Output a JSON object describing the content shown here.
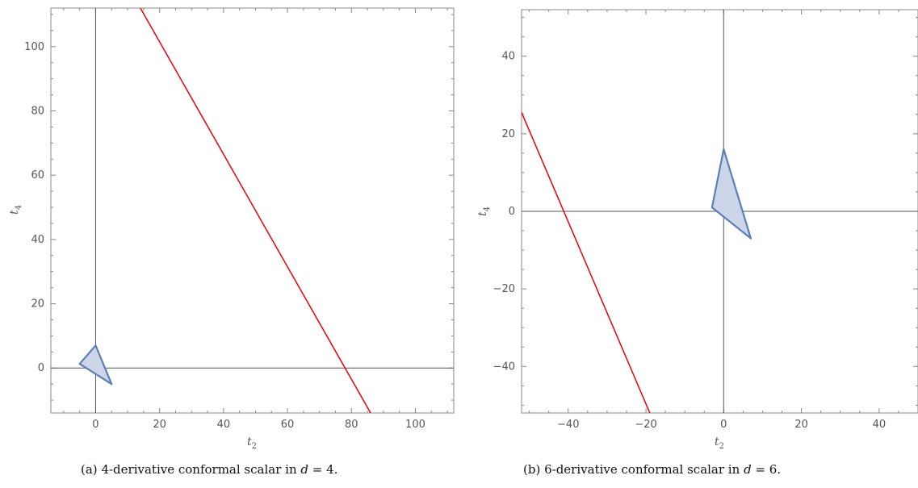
{
  "chart_data": [
    {
      "type": "line",
      "caption": {
        "label": "(a)",
        "text": "4-derivative conformal scalar in",
        "math_var": "d",
        "math_rel": " = ",
        "math_val": "4."
      },
      "xlabel": {
        "base": "t",
        "sub": "2"
      },
      "ylabel": {
        "base": "t",
        "sub": "4"
      },
      "xlim": [
        -14,
        112
      ],
      "ylim": [
        -14,
        112
      ],
      "xticks": [
        0,
        20,
        40,
        60,
        80,
        100
      ],
      "yticks": [
        0,
        20,
        40,
        60,
        80,
        100
      ],
      "xtick_labels": [
        "0",
        "20",
        "40",
        "60",
        "80",
        "100"
      ],
      "ytick_labels": [
        "0",
        "20",
        "40",
        "60",
        "80",
        "100"
      ],
      "red_line": [
        [
          14,
          112
        ],
        [
          86,
          -14
        ]
      ],
      "region": [
        [
          0,
          7
        ],
        [
          5,
          -5
        ],
        [
          -5,
          1.3
        ]
      ],
      "colors": {
        "line": "#e8000b",
        "region_fill": "#cdd6e8",
        "region_stroke": "#5b7fb6"
      }
    },
    {
      "type": "line",
      "caption": {
        "label": "(b)",
        "text": "6-derivative conformal scalar in",
        "math_var": "d",
        "math_rel": " = ",
        "math_val": "6."
      },
      "xlabel": {
        "base": "t",
        "sub": "2"
      },
      "ylabel": {
        "base": "t",
        "sub": "4"
      },
      "xlim": [
        -52,
        50
      ],
      "ylim": [
        -52,
        52
      ],
      "xticks": [
        -40,
        -20,
        0,
        20,
        40
      ],
      "yticks": [
        -40,
        -20,
        0,
        20,
        40
      ],
      "xtick_labels": [
        "−40",
        "−20",
        "0",
        "20",
        "40"
      ],
      "ytick_labels": [
        "−40",
        "−20",
        "0",
        "20",
        "40"
      ],
      "red_line": [
        [
          -52,
          25.5
        ],
        [
          -19,
          -52
        ]
      ],
      "region": [
        [
          0,
          16
        ],
        [
          7,
          -7
        ],
        [
          -3,
          1
        ]
      ],
      "colors": {
        "line": "#e8000b",
        "region_fill": "#cdd6e8",
        "region_stroke": "#5b7fb6"
      }
    }
  ]
}
